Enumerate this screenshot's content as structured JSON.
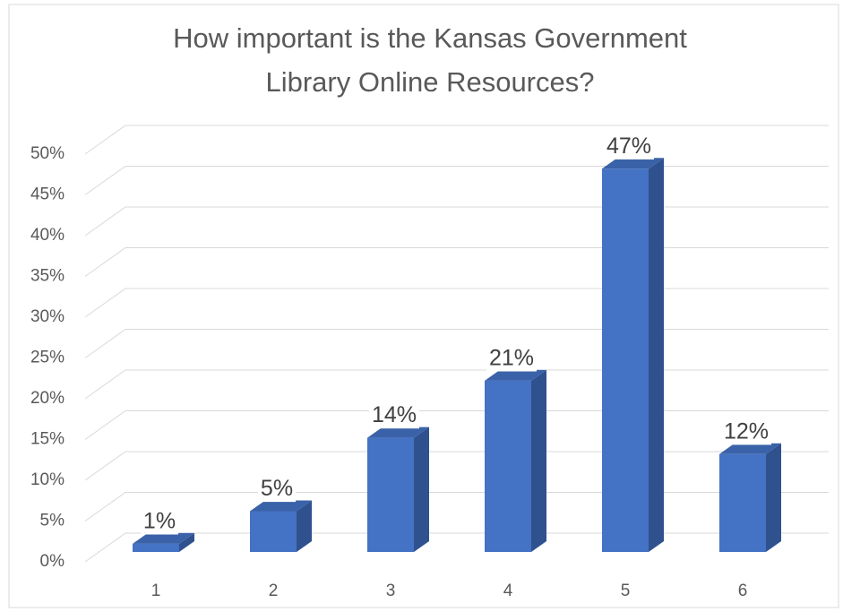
{
  "chart_data": {
    "type": "bar3d",
    "title": [
      "How important is the Kansas Government",
      "Library Online Resources?"
    ],
    "categories": [
      "1",
      "2",
      "3",
      "4",
      "5",
      "6"
    ],
    "values": [
      1,
      5,
      14,
      21,
      47,
      12
    ],
    "value_labels": [
      "1%",
      "5%",
      "14%",
      "21%",
      "47%",
      "12%"
    ],
    "color": "#4472c4",
    "ylim": [
      0,
      50
    ],
    "yticks": [
      {
        "value": 0,
        "label": "0%"
      },
      {
        "value": 5,
        "label": "5%"
      },
      {
        "value": 10,
        "label": "10%"
      },
      {
        "value": 15,
        "label": "15%"
      },
      {
        "value": 20,
        "label": "20%"
      },
      {
        "value": 25,
        "label": "25%"
      },
      {
        "value": 30,
        "label": "30%"
      },
      {
        "value": 35,
        "label": "35%"
      },
      {
        "value": 40,
        "label": "40%"
      },
      {
        "value": 45,
        "label": "45%"
      },
      {
        "value": 50,
        "label": "50%"
      }
    ],
    "grid": true
  }
}
